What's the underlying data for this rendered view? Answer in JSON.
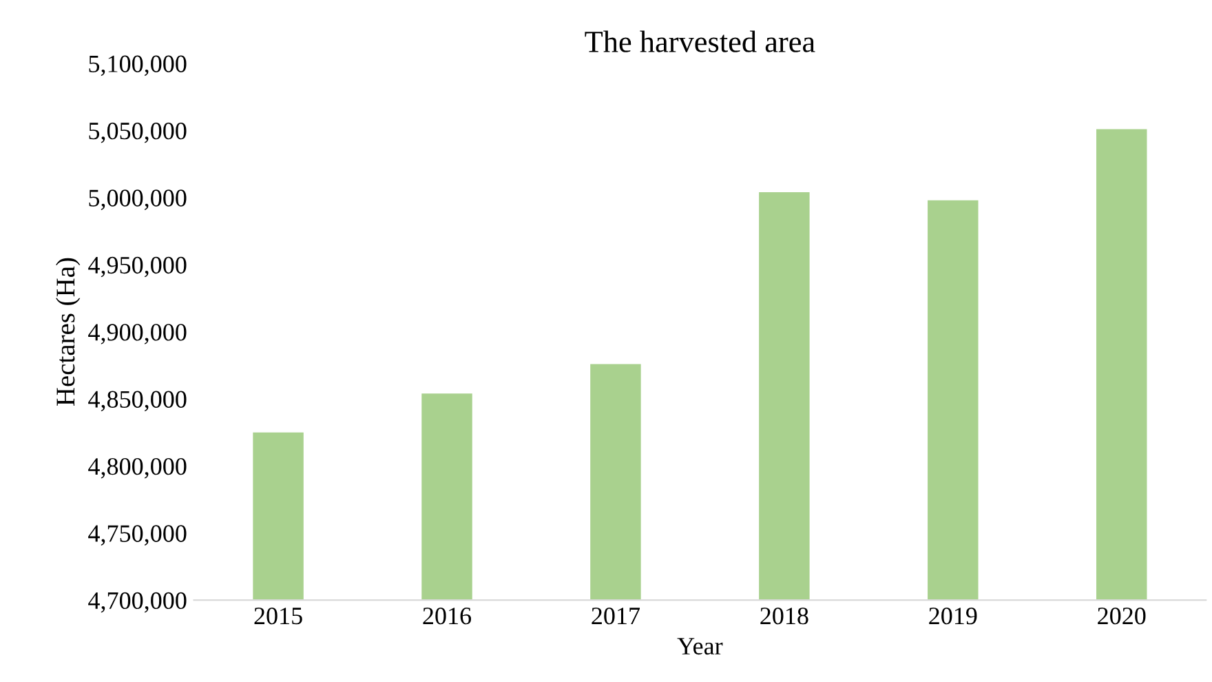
{
  "chart_data": {
    "type": "bar",
    "title": "The harvested area",
    "xlabel": "Year",
    "ylabel": "Hectares (Ha)",
    "categories": [
      "2015",
      "2016",
      "2017",
      "2018",
      "2019",
      "2020"
    ],
    "values": [
      4825000,
      4854000,
      4876000,
      5004000,
      4998000,
      5051000
    ],
    "color": "#a9d18e",
    "ylim": [
      4700000,
      5100000
    ],
    "yticks": [
      {
        "value": 4700000,
        "label": "4,700,000"
      },
      {
        "value": 4750000,
        "label": "4,750,000"
      },
      {
        "value": 4800000,
        "label": "4,800,000"
      },
      {
        "value": 4850000,
        "label": "4,850,000"
      },
      {
        "value": 4900000,
        "label": "4,900,000"
      },
      {
        "value": 4950000,
        "label": "4,950,000"
      },
      {
        "value": 5000000,
        "label": "5,000,000"
      },
      {
        "value": 5050000,
        "label": "5,050,000"
      },
      {
        "value": 5100000,
        "label": "5,100,000"
      }
    ],
    "grid": false
  }
}
